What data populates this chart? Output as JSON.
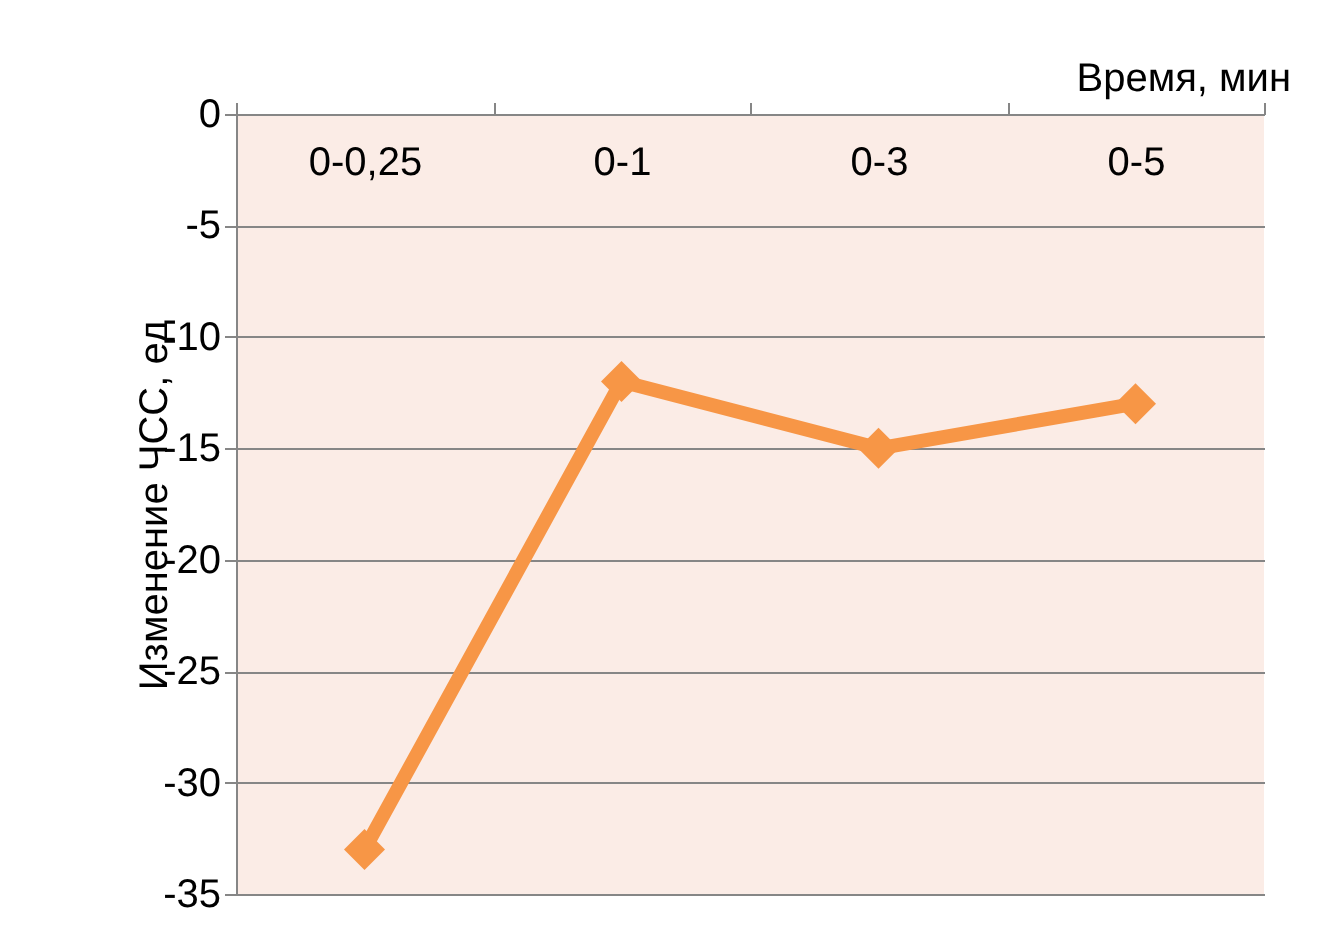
{
  "chart_data": {
    "type": "line",
    "xlabel": "Время, мин",
    "ylabel": "Изменение ЧСС, ед",
    "categories": [
      "0-0,25",
      "0-1",
      "0-3",
      "0-5"
    ],
    "series": [
      {
        "color": "#f79646",
        "values": [
          -33,
          -12,
          -15,
          -13
        ]
      }
    ],
    "ylim": [
      -35,
      0
    ],
    "yticks": [
      -35,
      -30,
      -25,
      -20,
      -15,
      -10,
      -5,
      0
    ],
    "grid": "y",
    "marker": "diamond",
    "line_style": "solid",
    "legend": false
  }
}
